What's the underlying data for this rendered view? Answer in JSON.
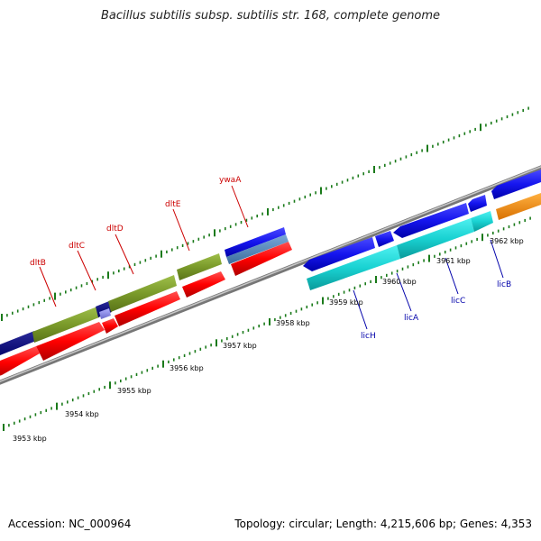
{
  "title": "Bacillus subtilis subsp. subtilis str. 168, complete genome",
  "footer": {
    "accession": "Accession: NC_000964",
    "summary": "Topology: circular; Length: 4,215,606 bp; Genes: 4,353"
  },
  "colors": {
    "backbone": "#8a8a8a",
    "tick": "#1a7a1a",
    "label_top": "#cc0000",
    "label_bottom": "#0000aa"
  },
  "kbp_ticks": [
    {
      "label": "3953 kbp"
    },
    {
      "label": "3954 kbp"
    },
    {
      "label": "3955 kbp"
    },
    {
      "label": "3956 kbp"
    },
    {
      "label": "3957 kbp"
    },
    {
      "label": "3958 kbp"
    },
    {
      "label": "3959 kbp"
    },
    {
      "label": "3960 kbp"
    },
    {
      "label": "3961 kbp"
    },
    {
      "label": "3962 kbp"
    }
  ],
  "gene_labels_top": [
    "dltB",
    "dltC",
    "dltD",
    "dltE",
    "ywaA"
  ],
  "gene_labels_bottom": [
    "licH",
    "licA",
    "licC",
    "licB"
  ]
}
